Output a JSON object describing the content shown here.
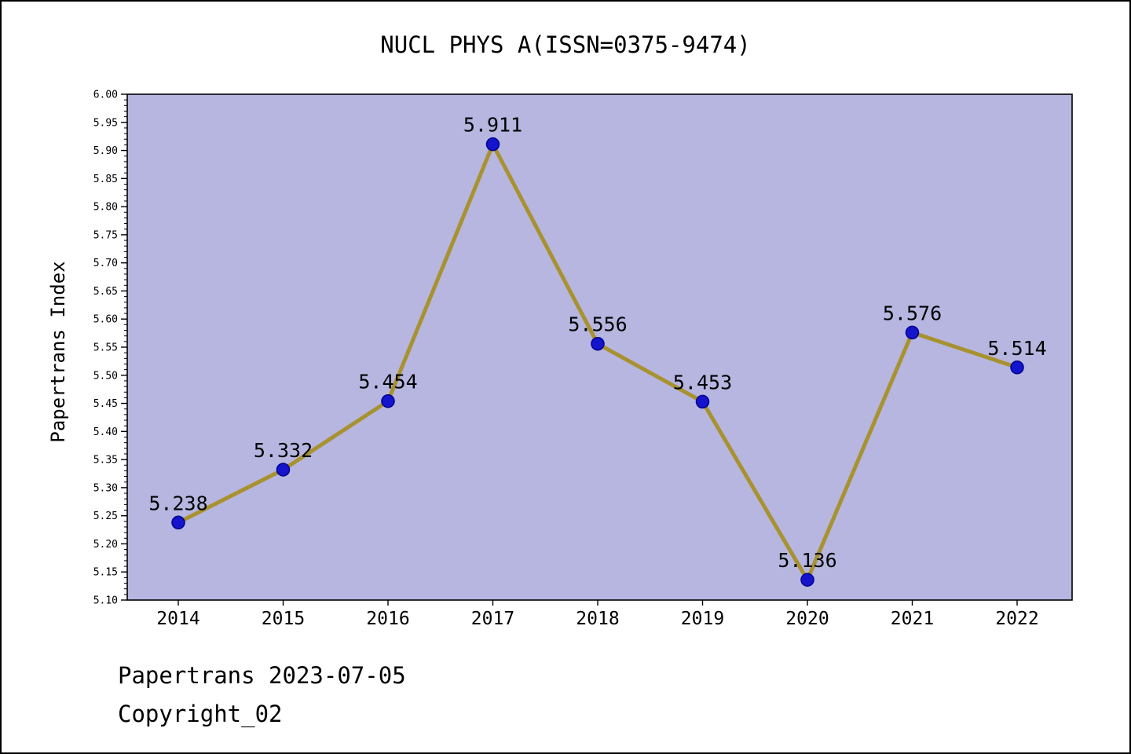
{
  "title": "NUCL PHYS A(ISSN=0375-9474)",
  "footer": {
    "line1": "Papertrans 2023-07-05",
    "line2": "Copyright_02"
  },
  "chart_data": {
    "type": "line",
    "title": "NUCL PHYS A(ISSN=0375-9474)",
    "xlabel": "",
    "ylabel": "Papertrans Index",
    "categories": [
      "2014",
      "2015",
      "2016",
      "2017",
      "2018",
      "2019",
      "2020",
      "2021",
      "2022"
    ],
    "series": [
      {
        "name": "Papertrans Index",
        "values": [
          5.238,
          5.332,
          5.454,
          5.911,
          5.556,
          5.453,
          5.136,
          5.576,
          5.514
        ],
        "point_labels": [
          "5.238",
          "5.332",
          "5.454",
          "5.911",
          "5.556",
          "5.453",
          "5.136",
          "5.576",
          "5.514"
        ]
      }
    ],
    "ylim": [
      5.1,
      6.0
    ],
    "y_major_step": 0.05,
    "y_minor_step": 0.01,
    "grid": false,
    "legend_position": "none",
    "colors": {
      "plot_bg": "#b6b6e1",
      "line": "#a8922f",
      "marker_fill": "#1414cd",
      "marker_edge": "#00008b",
      "axis": "#000000",
      "text": "#000000"
    }
  }
}
